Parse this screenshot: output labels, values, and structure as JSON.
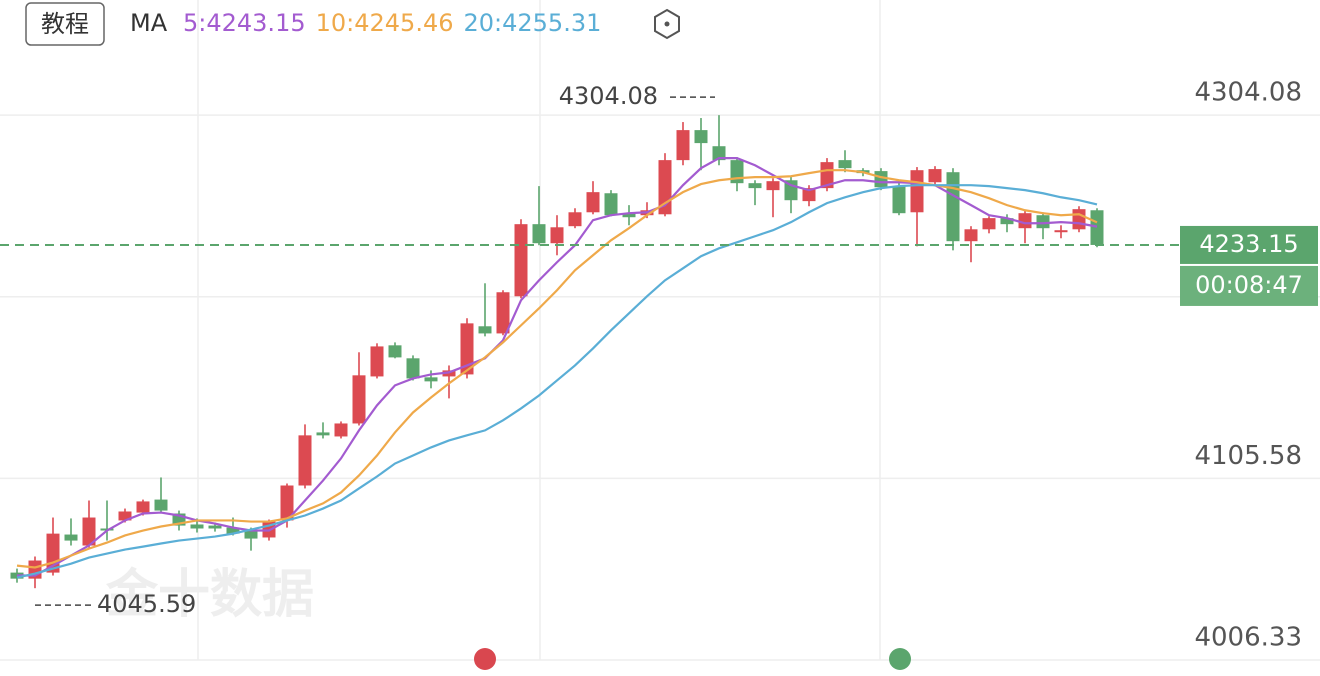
{
  "chart_data": {
    "type": "candlestick",
    "button": "教程",
    "indicator": "MA",
    "watermark": "金十数据",
    "up_color": "#dc4a51",
    "down_color": "#5ba56d",
    "ylim": [
      3997.6,
      4367.0
    ],
    "yticks": [
      4006.33,
      {
        "value": 4105.58,
        "label": "4105.58"
      },
      {
        "value": 4204.83,
        "label": null
      },
      {
        "value": 4304.08,
        "label": "4304.08"
      }
    ],
    "grid": true,
    "max_label": 4304.08,
    "min_label": 4045.59,
    "last_price": 4233.15,
    "countdown": "00:08:47",
    "open": [
      4054.1,
      4050.8,
      4054.1,
      4074.9,
      4068.9,
      4078.2,
      4082.6,
      4086.9,
      4094.0,
      4086.4,
      4080.4,
      4079.8,
      4078.7,
      4077.1,
      4073.3,
      4082.6,
      4101.7,
      4130.7,
      4128.5,
      4135.6,
      4161.3,
      4178.3,
      4171.2,
      4160.8,
      4161.3,
      4162.4,
      4188.7,
      4184.8,
      4205.1,
      4244.5,
      4234.1,
      4243.4,
      4251.0,
      4261.4,
      4250.5,
      4249.4,
      4249.9,
      4279.5,
      4295.9,
      4287.1,
      4279.5,
      4266.9,
      4263.1,
      4268.5,
      4257.1,
      4264.2,
      4279.5,
      4274.0,
      4273.5,
      4265.3,
      4251.0,
      4267.4,
      4272.9,
      4235.2,
      4241.7,
      4247.8,
      4242.3,
      4249.4,
      4240.1,
      4241.7,
      4252.1
    ],
    "high": [
      4056.3,
      4062.9,
      4084.2,
      4083.7,
      4093.5,
      4093.5,
      4089.1,
      4094.0,
      4106.1,
      4088.0,
      4083.7,
      4081.5,
      4084.2,
      4078.7,
      4083.1,
      4102.8,
      4135.1,
      4136.2,
      4136.7,
      4174.5,
      4179.4,
      4179.9,
      4172.8,
      4164.6,
      4167.3,
      4193.1,
      4212.2,
      4208.4,
      4247.2,
      4265.3,
      4249.4,
      4253.2,
      4268.0,
      4263.1,
      4254.9,
      4256.5,
      4283.3,
      4300.3,
      4302.5,
      4304.08,
      4281.1,
      4268.5,
      4269.6,
      4270.7,
      4265.8,
      4280.6,
      4284.9,
      4275.1,
      4275.1,
      4268.5,
      4275.7,
      4276.2,
      4275.1,
      4243.4,
      4248.8,
      4249.9,
      4252.1,
      4251.0,
      4243.9,
      4254.3,
      4253.2
    ],
    "low": [
      4048.6,
      4045.59,
      4052.5,
      4068.9,
      4067.8,
      4071.6,
      4081.5,
      4085.3,
      4086.9,
      4077.1,
      4076.0,
      4076.5,
      4074.4,
      4066.1,
      4071.6,
      4078.7,
      4100.1,
      4127.4,
      4127.4,
      4134.5,
      4160.2,
      4171.2,
      4159.1,
      4154.8,
      4149.3,
      4160.2,
      4183.2,
      4183.8,
      4204.0,
      4233.0,
      4227.5,
      4242.3,
      4249.9,
      4248.8,
      4243.9,
      4247.8,
      4248.8,
      4276.7,
      4274.0,
      4276.7,
      4262.5,
      4254.9,
      4248.3,
      4250.5,
      4254.3,
      4262.5,
      4272.9,
      4270.7,
      4263.1,
      4249.4,
      4232.4,
      4265.3,
      4230.2,
      4223.7,
      4239.5,
      4240.1,
      4234.1,
      4236.3,
      4236.8,
      4240.1,
      4231.9
    ],
    "close": [
      4050.8,
      4060.7,
      4075.4,
      4071.6,
      4084.2,
      4077.1,
      4087.5,
      4093.0,
      4088.0,
      4079.8,
      4078.2,
      4078.2,
      4075.4,
      4072.7,
      4082.0,
      4101.7,
      4129.1,
      4129.1,
      4135.6,
      4161.9,
      4177.7,
      4171.7,
      4160.2,
      4158.6,
      4164.6,
      4190.3,
      4184.8,
      4207.3,
      4244.5,
      4234.1,
      4242.8,
      4251.0,
      4262.0,
      4249.4,
      4248.3,
      4252.1,
      4279.5,
      4295.9,
      4288.8,
      4279.5,
      4266.9,
      4264.2,
      4268.0,
      4257.6,
      4264.2,
      4278.4,
      4275.1,
      4272.4,
      4264.7,
      4250.5,
      4274.0,
      4274.6,
      4235.2,
      4241.7,
      4247.8,
      4244.5,
      4250.5,
      4242.3,
      4241.2,
      4252.7,
      4233.15
    ],
    "series": [
      {
        "name": "5:4243.15",
        "color": "#a35bd0",
        "values": [
          4052.5,
          4052.5,
          4057.9,
          4063.4,
          4068.9,
          4077.1,
          4082.6,
          4086.4,
          4086.9,
          4085.3,
          4082.6,
          4080.9,
          4078.7,
          4077.1,
          4077.1,
          4082.6,
          4093.5,
          4104.4,
          4116.5,
          4131.8,
          4145.5,
          4156.4,
          4160.2,
          4162.4,
          4163.5,
          4167.3,
          4171.2,
          4181.0,
          4202.9,
          4213.8,
          4223.7,
          4233.0,
          4246.7,
          4249.4,
          4250.5,
          4251.0,
          4254.9,
          4265.8,
          4275.1,
          4280.6,
          4280.6,
          4276.7,
          4271.3,
          4265.8,
          4263.1,
          4265.8,
          4268.5,
          4268.5,
          4267.4,
          4267.4,
          4266.9,
          4265.8,
          4260.3,
          4254.9,
          4249.4,
          4247.8,
          4245.0,
          4245.0,
          4245.6,
          4245.0,
          4243.15
        ]
      },
      {
        "name": "10:4245.46",
        "color": "#efa94a",
        "values": [
          4057.9,
          4056.9,
          4059.6,
          4063.4,
          4067.2,
          4070.5,
          4074.4,
          4077.1,
          4079.3,
          4080.9,
          4082.6,
          4082.6,
          4082.6,
          4082.0,
          4082.0,
          4083.7,
          4088.0,
          4091.9,
          4097.9,
          4107.2,
          4118.1,
          4130.7,
          4141.6,
          4149.8,
          4157.5,
          4164.6,
          4171.7,
          4179.9,
          4189.2,
          4198.5,
          4208.4,
          4219.3,
          4227.5,
          4235.7,
          4242.3,
          4249.4,
          4256.0,
          4262.0,
          4266.4,
          4268.5,
          4269.6,
          4270.2,
          4270.2,
          4270.7,
          4272.4,
          4274.0,
          4274.0,
          4272.9,
          4270.2,
          4268.5,
          4267.4,
          4265.8,
          4264.2,
          4262.0,
          4258.7,
          4254.9,
          4252.1,
          4250.5,
          4249.4,
          4249.9,
          4245.46
        ]
      },
      {
        "name": "20:4255.31",
        "color": "#5aaed6",
        "values": [
          4051.4,
          4053.6,
          4056.3,
          4059.0,
          4062.3,
          4064.5,
          4066.7,
          4068.3,
          4070.0,
          4071.6,
          4072.7,
          4073.8,
          4075.4,
          4077.6,
          4079.8,
          4082.6,
          4085.3,
          4089.1,
          4093.5,
          4100.1,
          4106.6,
          4113.7,
          4118.1,
          4122.5,
          4126.3,
          4129.1,
          4131.8,
          4137.3,
          4143.8,
          4150.9,
          4159.1,
          4167.3,
          4176.6,
          4186.5,
          4195.8,
          4205.1,
          4213.8,
          4220.4,
          4227.0,
          4231.3,
          4234.6,
          4237.9,
          4241.2,
          4245.6,
          4251.0,
          4256.0,
          4259.2,
          4262.0,
          4264.2,
          4265.3,
          4265.8,
          4265.8,
          4265.8,
          4265.8,
          4265.3,
          4264.2,
          4263.1,
          4261.4,
          4259.2,
          4257.6,
          4255.31
        ]
      }
    ]
  }
}
